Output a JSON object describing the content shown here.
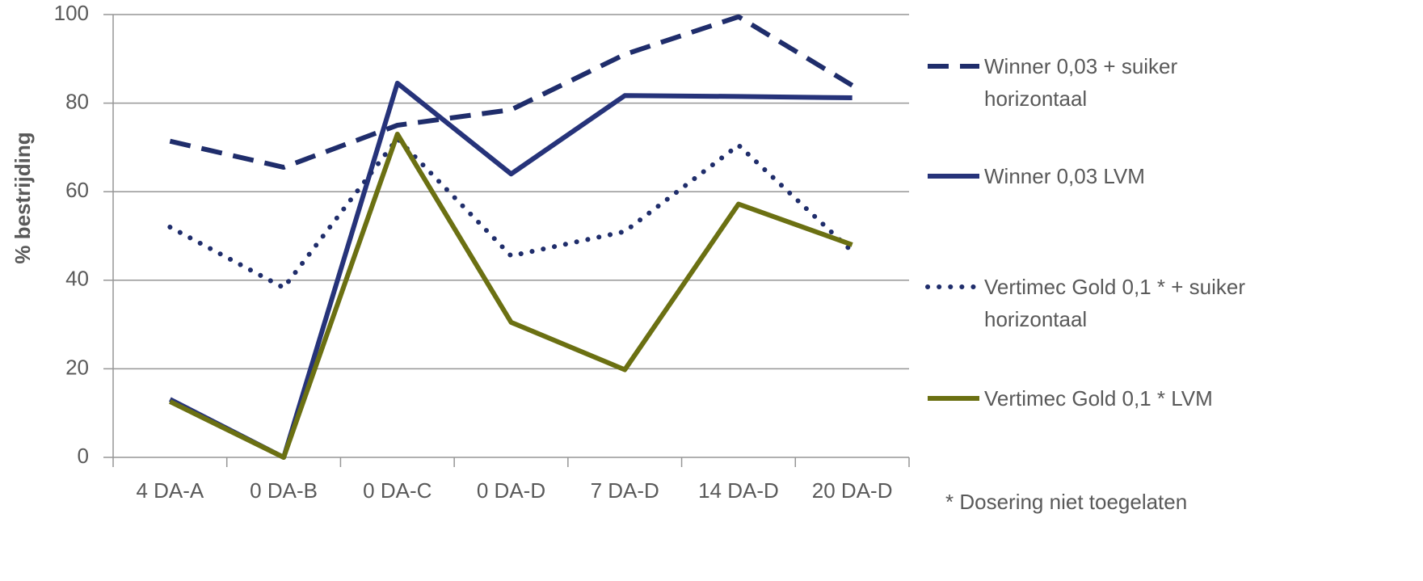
{
  "chart_data": {
    "type": "line",
    "y_label": "% bestrijding",
    "note": "* Dosering niet toegelaten",
    "categories": [
      "4 DA-A",
      "0 DA-B",
      "0 DA-C",
      "0 DA-D",
      "7 DA-D",
      "14 DA-D",
      "20 DA-D"
    ],
    "series": [
      {
        "name": "Winner 0,03 + suiker horizontaal",
        "color": "#1f2d6b",
        "dash": "dashed",
        "values": [
          71.4,
          65.5,
          75,
          78.5,
          91,
          99.5,
          84
        ]
      },
      {
        "name": "Winner 0,03 LVM",
        "color": "#26337a",
        "dash": "solid",
        "values": [
          13.1,
          0,
          84.5,
          64,
          81.7,
          81.5,
          81.2
        ]
      },
      {
        "name": "Vertimec Gold 0,1 * + suiker horizontaal",
        "color": "#1f2d6b",
        "dash": "dotted",
        "values": [
          52,
          38.3,
          72,
          45.5,
          51,
          70.5,
          46.5
        ]
      },
      {
        "name": "Vertimec Gold 0,1 * LVM",
        "color": "#6b7012",
        "dash": "solid",
        "values": [
          12.6,
          0,
          73,
          30.5,
          19.8,
          57.2,
          48
        ]
      }
    ],
    "ylim": [
      0,
      100
    ],
    "yticks": [
      0,
      20,
      40,
      60,
      80,
      100
    ],
    "grid": true,
    "legend": "right"
  }
}
